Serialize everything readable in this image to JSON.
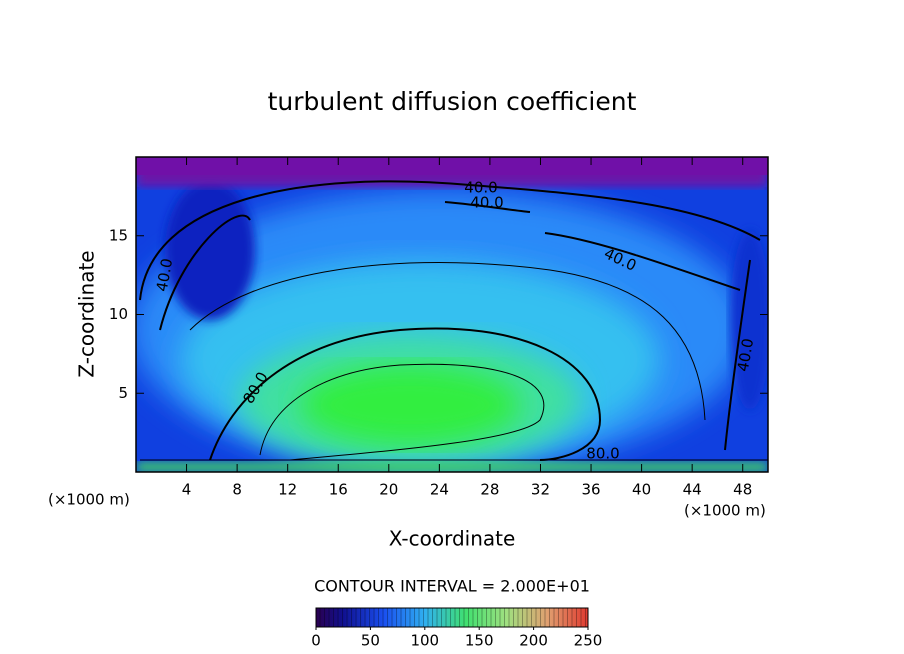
{
  "chart_data": {
    "type": "contour",
    "title": "turbulent diffusion coefficient",
    "x_label": "X-coordinate",
    "y_label": "Z-coordinate",
    "x_unit_label": "(×1000 m)",
    "y_unit_label": "(×1000 m)",
    "xlim": [
      0,
      50
    ],
    "xticks": [
      4,
      8,
      12,
      16,
      20,
      24,
      28,
      32,
      36,
      40,
      44,
      48
    ],
    "ylim": [
      0,
      20
    ],
    "yticks": [
      5,
      10,
      15
    ],
    "contour_labels": [
      "40.0",
      "40.0",
      "40.0",
      "40.0",
      "40.0",
      "80.0",
      "80.0"
    ],
    "contour_note": "CONTOUR INTERVAL = 2.000E+01",
    "colorbar_lim": [
      0,
      250
    ],
    "colorbar_ticks": [
      0,
      50,
      100,
      150,
      200,
      250
    ]
  }
}
